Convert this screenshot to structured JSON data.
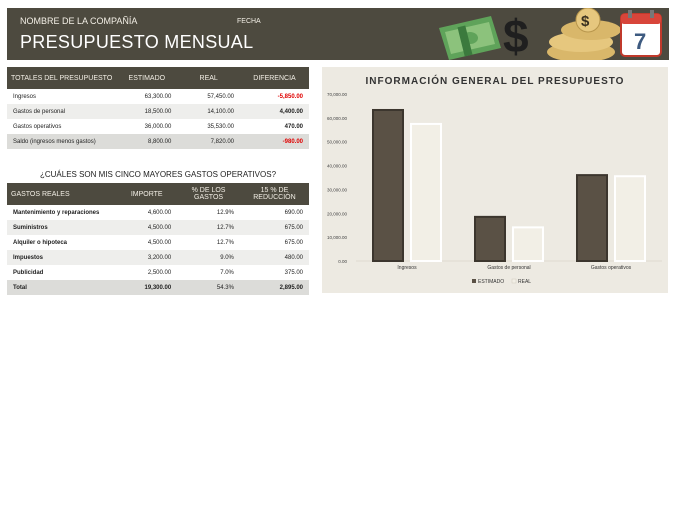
{
  "header": {
    "company": "NOMBRE DE LA COMPAÑÍA",
    "date_label": "FECHA",
    "title": "PRESUPUESTO MENSUAL",
    "calendar_day": "7",
    "coin_symbol": "$"
  },
  "totals": {
    "headers": [
      "TOTALES DEL PRESUPUESTO",
      "ESTIMADO",
      "REAL",
      "DIFERENCIA"
    ],
    "rows": [
      {
        "label": "Ingresos",
        "est": "63,300.00",
        "real": "57,450.00",
        "diff": "-5,850.00"
      },
      {
        "label": "Gastos de personal",
        "est": "18,500.00",
        "real": "14,100.00",
        "diff": "4,400.00"
      },
      {
        "label": "Gastos operativos",
        "est": "36,000.00",
        "real": "35,530.00",
        "diff": "470.00"
      },
      {
        "label": "Saldo (ingresos menos gastos)",
        "est": "8,800.00",
        "real": "7,820.00",
        "diff": "-980.00"
      }
    ]
  },
  "expenses": {
    "question": "¿CUÁLES SON MIS CINCO MAYORES GASTOS OPERATIVOS?",
    "headers": [
      "GASTOS REALES",
      "IMPORTE",
      "% DE LOS GASTOS",
      "15 % DE REDUCCIÓN"
    ],
    "rows": [
      {
        "label": "Mantenimiento y reparaciones",
        "amount": "4,600.00",
        "pct": "12.9%",
        "red": "690.00"
      },
      {
        "label": "Suministros",
        "amount": "4,500.00",
        "pct": "12.7%",
        "red": "675.00"
      },
      {
        "label": "Alquiler o hipoteca",
        "amount": "4,500.00",
        "pct": "12.7%",
        "red": "675.00"
      },
      {
        "label": "Impuestos",
        "amount": "3,200.00",
        "pct": "9.0%",
        "red": "480.00"
      },
      {
        "label": "Publicidad",
        "amount": "2,500.00",
        "pct": "7.0%",
        "red": "375.00"
      }
    ],
    "total": {
      "label": "Total",
      "amount": "19,300.00",
      "pct": "54.3%",
      "red": "2,895.00"
    }
  },
  "colors": {
    "estimado": "#5a5145",
    "real": "#f2efe6",
    "header_bg": "#4d4a3f",
    "negative": "#e00000"
  },
  "chart_data": {
    "type": "bar",
    "title": "INFORMACIÓN GENERAL DEL PRESUPUESTO",
    "categories": [
      "Ingresos",
      "Gastos de personal",
      "Gastos operativos"
    ],
    "series": [
      {
        "name": "ESTIMADO",
        "values": [
          63300,
          18500,
          36000
        ]
      },
      {
        "name": "REAL",
        "values": [
          57450,
          14100,
          35530
        ]
      }
    ],
    "ylim": [
      0,
      70000
    ],
    "yticks": [
      0,
      10000,
      20000,
      30000,
      40000,
      50000,
      60000,
      70000
    ],
    "ytick_labels": [
      "0.00",
      "10,000.00",
      "20,000.00",
      "30,000.00",
      "40,000.00",
      "50,000.00",
      "60,000.00",
      "70,000.00"
    ],
    "legend": "bottom",
    "grid": false
  }
}
